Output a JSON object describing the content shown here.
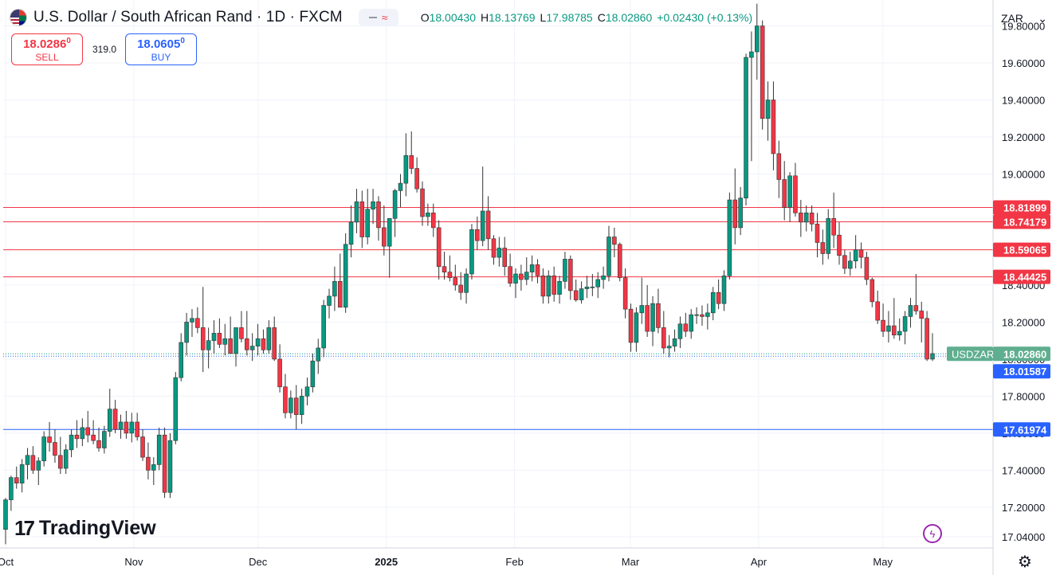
{
  "header": {
    "title": "U.S. Dollar / South African Rand · 1D · FXCM",
    "ohlc": {
      "o_label": "O",
      "o": "18.00430",
      "h_label": "H",
      "h": "18.13769",
      "l_label": "L",
      "l": "17.98785",
      "c_label": "C",
      "c": "18.02860",
      "change": "+0.02430 (+0.13%)"
    }
  },
  "trade": {
    "sell_price": "18.0286",
    "sell_sup": "0",
    "sell_label": "SELL",
    "spread": "319.0",
    "buy_price": "18.0605",
    "buy_sup": "0",
    "buy_label": "BUY"
  },
  "currency_selector": {
    "value": "ZAR"
  },
  "brand": {
    "logo": "17",
    "name": "TradingView"
  },
  "colors": {
    "up": "#089981",
    "down": "#f23645",
    "resistance": "#f23645",
    "support": "#2962ff",
    "grid": "#f0f3fa",
    "axis_text": "#131722",
    "current_tag": "#5fae8f"
  },
  "icons": {
    "flag": "us-za-flag-icon",
    "bolt": "bolt-icon",
    "settings": "gear-icon",
    "dropdown": "chevron-down-icon"
  },
  "chart_data": {
    "type": "candlestick",
    "symbol": "USDZAR",
    "ylim": [
      16.98,
      19.94
    ],
    "y_ticks": [
      "17.04000",
      "17.20000",
      "17.40000",
      "17.60000",
      "17.80000",
      "18.00000",
      "18.20000",
      "18.40000",
      "19.00000",
      "19.20000",
      "19.40000",
      "19.60000",
      "19.80000"
    ],
    "x_ticks": [
      {
        "label": "Oct",
        "date": "2024-10-01"
      },
      {
        "label": "Nov",
        "date": "2024-11-01"
      },
      {
        "label": "Dec",
        "date": "2024-12-01"
      },
      {
        "label": "2025",
        "date": "2025-01-01"
      },
      {
        "label": "Feb",
        "date": "2025-02-01"
      },
      {
        "label": "Mar",
        "date": "2025-03-01"
      },
      {
        "label": "Apr",
        "date": "2025-04-01"
      },
      {
        "label": "May",
        "date": "2025-05-01"
      }
    ],
    "horizontal_lines": [
      {
        "value": 18.81899,
        "label": "18.81899",
        "kind": "resistance"
      },
      {
        "value": 18.74179,
        "label": "18.74179",
        "kind": "resistance"
      },
      {
        "value": 18.59065,
        "label": "18.59065",
        "kind": "resistance"
      },
      {
        "value": 18.44425,
        "label": "18.44425",
        "kind": "resistance"
      },
      {
        "value": 17.61974,
        "label": "17.61974",
        "kind": "support"
      }
    ],
    "current_price": {
      "value": 18.0286,
      "label": "18.02860",
      "name": "USDZAR"
    },
    "bid_line": {
      "value": 18.01587,
      "label": "18.01587"
    },
    "candles": [
      [
        17.08,
        17.25,
        17.0,
        17.24
      ],
      [
        17.24,
        17.37,
        17.18,
        17.36
      ],
      [
        17.36,
        17.42,
        17.3,
        17.33
      ],
      [
        17.33,
        17.46,
        17.28,
        17.43
      ],
      [
        17.43,
        17.52,
        17.35,
        17.48
      ],
      [
        17.48,
        17.53,
        17.38,
        17.4
      ],
      [
        17.4,
        17.47,
        17.32,
        17.45
      ],
      [
        17.45,
        17.61,
        17.42,
        17.58
      ],
      [
        17.58,
        17.66,
        17.5,
        17.55
      ],
      [
        17.55,
        17.62,
        17.44,
        17.48
      ],
      [
        17.48,
        17.58,
        17.38,
        17.41
      ],
      [
        17.41,
        17.54,
        17.38,
        17.51
      ],
      [
        17.51,
        17.62,
        17.47,
        17.59
      ],
      [
        17.59,
        17.67,
        17.52,
        17.57
      ],
      [
        17.57,
        17.68,
        17.53,
        17.63
      ],
      [
        17.63,
        17.72,
        17.55,
        17.59
      ],
      [
        17.59,
        17.67,
        17.54,
        17.56
      ],
      [
        17.56,
        17.63,
        17.5,
        17.52
      ],
      [
        17.52,
        17.64,
        17.49,
        17.61
      ],
      [
        17.61,
        17.84,
        17.58,
        17.73
      ],
      [
        17.73,
        17.78,
        17.6,
        17.62
      ],
      [
        17.62,
        17.7,
        17.57,
        17.66
      ],
      [
        17.66,
        17.72,
        17.57,
        17.6
      ],
      [
        17.6,
        17.71,
        17.55,
        17.66
      ],
      [
        17.66,
        17.71,
        17.56,
        17.58
      ],
      [
        17.58,
        17.62,
        17.45,
        17.47
      ],
      [
        17.47,
        17.55,
        17.35,
        17.4
      ],
      [
        17.4,
        17.47,
        17.32,
        17.43
      ],
      [
        17.43,
        17.63,
        17.4,
        17.59
      ],
      [
        17.59,
        17.63,
        17.25,
        17.28
      ],
      [
        17.28,
        17.6,
        17.25,
        17.56
      ],
      [
        17.56,
        17.93,
        17.54,
        17.9
      ],
      [
        17.9,
        18.14,
        17.88,
        18.09
      ],
      [
        18.09,
        18.25,
        18.02,
        18.2
      ],
      [
        18.2,
        18.27,
        18.12,
        18.22
      ],
      [
        18.22,
        18.28,
        18.14,
        18.17
      ],
      [
        18.17,
        18.39,
        17.93,
        18.05
      ],
      [
        18.05,
        18.17,
        17.95,
        18.1
      ],
      [
        18.1,
        18.21,
        18.03,
        18.14
      ],
      [
        18.14,
        18.22,
        18.06,
        18.08
      ],
      [
        18.08,
        18.19,
        18.02,
        18.11
      ],
      [
        18.11,
        18.23,
        18.04,
        18.03
      ],
      [
        18.03,
        18.16,
        17.96,
        18.17
      ],
      [
        18.17,
        18.26,
        18.09,
        18.11
      ],
      [
        18.11,
        18.26,
        18.02,
        18.05
      ],
      [
        18.05,
        18.14,
        17.99,
        18.07
      ],
      [
        18.07,
        18.19,
        18.02,
        18.11
      ],
      [
        18.11,
        18.16,
        18.03,
        18.05
      ],
      [
        18.05,
        18.21,
        18.03,
        18.17
      ],
      [
        18.17,
        18.23,
        17.99,
        18.0
      ],
      [
        18.0,
        18.08,
        17.82,
        17.85
      ],
      [
        17.85,
        17.92,
        17.68,
        17.71
      ],
      [
        17.71,
        17.83,
        17.68,
        17.79
      ],
      [
        17.79,
        17.86,
        17.62,
        17.7
      ],
      [
        17.7,
        17.84,
        17.65,
        17.8
      ],
      [
        17.8,
        17.9,
        17.75,
        17.85
      ],
      [
        17.85,
        18.03,
        17.82,
        17.99
      ],
      [
        17.99,
        18.11,
        17.92,
        18.06
      ],
      [
        18.06,
        18.32,
        18.01,
        18.29
      ],
      [
        18.29,
        18.38,
        18.22,
        18.34
      ],
      [
        18.34,
        18.5,
        18.26,
        18.42
      ],
      [
        18.42,
        18.57,
        18.3,
        18.28
      ],
      [
        18.28,
        18.68,
        18.25,
        18.62
      ],
      [
        18.62,
        18.83,
        18.55,
        18.74
      ],
      [
        18.74,
        18.92,
        18.68,
        18.85
      ],
      [
        18.85,
        18.91,
        18.6,
        18.66
      ],
      [
        18.66,
        18.92,
        18.62,
        18.81
      ],
      [
        18.81,
        18.92,
        18.73,
        18.85
      ],
      [
        18.85,
        18.88,
        18.64,
        18.71
      ],
      [
        18.71,
        18.83,
        18.56,
        18.61
      ],
      [
        18.61,
        18.75,
        18.44,
        18.76
      ],
      [
        18.76,
        18.92,
        18.66,
        18.91
      ],
      [
        18.91,
        19.0,
        18.82,
        18.95
      ],
      [
        18.95,
        19.22,
        18.88,
        19.1
      ],
      [
        19.1,
        19.23,
        19.0,
        19.03
      ],
      [
        19.03,
        19.09,
        18.9,
        18.92
      ],
      [
        18.92,
        18.96,
        18.72,
        18.77
      ],
      [
        18.77,
        18.84,
        18.72,
        18.79
      ],
      [
        18.79,
        18.84,
        18.66,
        18.71
      ],
      [
        18.71,
        18.75,
        18.43,
        18.5
      ],
      [
        18.5,
        18.58,
        18.43,
        18.47
      ],
      [
        18.47,
        18.56,
        18.42,
        18.44
      ],
      [
        18.44,
        18.51,
        18.37,
        18.4
      ],
      [
        18.4,
        18.47,
        18.32,
        18.36
      ],
      [
        18.36,
        18.49,
        18.3,
        18.46
      ],
      [
        18.46,
        18.73,
        18.43,
        18.7
      ],
      [
        18.7,
        18.77,
        18.59,
        18.64
      ],
      [
        18.64,
        19.04,
        18.61,
        18.8
      ],
      [
        18.8,
        18.88,
        18.59,
        18.65
      ],
      [
        18.65,
        18.67,
        18.51,
        18.55
      ],
      [
        18.55,
        18.66,
        18.5,
        18.6
      ],
      [
        18.6,
        18.66,
        18.45,
        18.5
      ],
      [
        18.5,
        18.57,
        18.39,
        18.41
      ],
      [
        18.41,
        18.49,
        18.33,
        18.46
      ],
      [
        18.46,
        18.51,
        18.37,
        18.43
      ],
      [
        18.43,
        18.55,
        18.4,
        18.47
      ],
      [
        18.47,
        18.56,
        18.42,
        18.51
      ],
      [
        18.51,
        18.54,
        18.41,
        18.45
      ],
      [
        18.45,
        18.49,
        18.3,
        18.34
      ],
      [
        18.34,
        18.48,
        18.3,
        18.45
      ],
      [
        18.45,
        18.5,
        18.31,
        18.35
      ],
      [
        18.35,
        18.45,
        18.3,
        18.42
      ],
      [
        18.42,
        18.58,
        18.38,
        18.54
      ],
      [
        18.54,
        18.56,
        18.32,
        18.37
      ],
      [
        18.37,
        18.43,
        18.31,
        18.32
      ],
      [
        18.32,
        18.42,
        18.3,
        18.38
      ],
      [
        18.38,
        18.45,
        18.33,
        18.39
      ],
      [
        18.39,
        18.46,
        18.34,
        18.39
      ],
      [
        18.39,
        18.47,
        18.33,
        18.43
      ],
      [
        18.43,
        18.5,
        18.38,
        18.45
      ],
      [
        18.45,
        18.72,
        18.42,
        18.66
      ],
      [
        18.66,
        18.71,
        18.55,
        18.62
      ],
      [
        18.62,
        18.63,
        18.42,
        18.44
      ],
      [
        18.44,
        18.49,
        18.22,
        18.27
      ],
      [
        18.27,
        18.3,
        18.04,
        18.09
      ],
      [
        18.09,
        18.28,
        18.04,
        18.25
      ],
      [
        18.25,
        18.44,
        18.19,
        18.29
      ],
      [
        18.29,
        18.4,
        18.12,
        18.15
      ],
      [
        18.15,
        18.34,
        18.07,
        18.3
      ],
      [
        18.3,
        18.38,
        18.14,
        18.17
      ],
      [
        18.17,
        18.26,
        18.03,
        18.06
      ],
      [
        18.06,
        18.13,
        18.01,
        18.07
      ],
      [
        18.07,
        18.16,
        18.04,
        18.11
      ],
      [
        18.11,
        18.23,
        18.06,
        18.19
      ],
      [
        18.19,
        18.25,
        18.12,
        18.15
      ],
      [
        18.15,
        18.27,
        18.11,
        18.24
      ],
      [
        18.24,
        18.28,
        18.19,
        18.24
      ],
      [
        18.24,
        18.29,
        18.18,
        18.23
      ],
      [
        18.23,
        18.3,
        18.16,
        18.25
      ],
      [
        18.25,
        18.39,
        18.21,
        18.36
      ],
      [
        18.36,
        18.43,
        18.27,
        18.3
      ],
      [
        18.3,
        18.48,
        18.26,
        18.45
      ],
      [
        18.45,
        18.9,
        18.43,
        18.86
      ],
      [
        18.86,
        19.03,
        18.62,
        18.71
      ],
      [
        18.71,
        18.93,
        18.67,
        18.87
      ],
      [
        18.87,
        19.65,
        18.83,
        19.63
      ],
      [
        19.63,
        19.77,
        19.07,
        19.66
      ],
      [
        19.66,
        19.92,
        19.51,
        19.8
      ],
      [
        19.8,
        19.83,
        19.24,
        19.3
      ],
      [
        19.3,
        19.5,
        19.18,
        19.4
      ],
      [
        19.4,
        19.5,
        19.02,
        19.11
      ],
      [
        19.11,
        19.18,
        18.87,
        18.97
      ],
      [
        18.97,
        19.07,
        18.75,
        18.82
      ],
      [
        18.82,
        19.01,
        18.74,
        18.99
      ],
      [
        18.99,
        19.06,
        18.77,
        18.79
      ],
      [
        18.79,
        18.86,
        18.66,
        18.74
      ],
      [
        18.74,
        18.83,
        18.69,
        18.79
      ],
      [
        18.79,
        18.83,
        18.69,
        18.73
      ],
      [
        18.73,
        18.79,
        18.55,
        18.63
      ],
      [
        18.63,
        18.7,
        18.51,
        18.57
      ],
      [
        18.57,
        18.81,
        18.54,
        18.76
      ],
      [
        18.76,
        18.9,
        18.6,
        18.67
      ],
      [
        18.67,
        18.74,
        18.51,
        18.56
      ],
      [
        18.56,
        18.59,
        18.46,
        18.49
      ],
      [
        18.49,
        18.58,
        18.45,
        18.53
      ],
      [
        18.53,
        18.67,
        18.49,
        18.59
      ],
      [
        18.59,
        18.63,
        18.49,
        18.55
      ],
      [
        18.55,
        18.58,
        18.4,
        18.43
      ],
      [
        18.43,
        18.44,
        18.28,
        18.31
      ],
      [
        18.31,
        18.37,
        18.19,
        18.21
      ],
      [
        18.21,
        18.3,
        18.12,
        18.15
      ],
      [
        18.15,
        18.26,
        18.09,
        18.18
      ],
      [
        18.18,
        18.33,
        18.11,
        18.13
      ],
      [
        18.13,
        18.22,
        18.1,
        18.15
      ],
      [
        18.15,
        18.26,
        18.08,
        18.23
      ],
      [
        18.23,
        18.33,
        18.17,
        18.29
      ],
      [
        18.29,
        18.46,
        18.24,
        18.26
      ],
      [
        18.26,
        18.31,
        18.09,
        18.22
      ],
      [
        18.22,
        18.26,
        17.99,
        18.0
      ],
      [
        18.0,
        18.14,
        17.99,
        18.03
      ]
    ]
  }
}
